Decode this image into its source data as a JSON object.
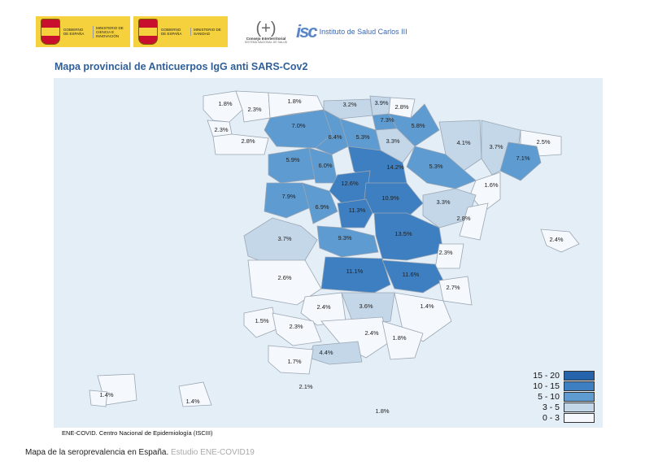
{
  "logos": {
    "gov1": {
      "line1": "GOBIERNO DE ESPAÑA",
      "line2": "MINISTERIO DE CIENCIA E INNOVACIÓN"
    },
    "gov2": {
      "line1": "GOBIERNO DE ESPAÑA",
      "line2": "MINISTERIO DE SANIDAD"
    },
    "consejo": {
      "line1": "Consejo Interterritorial",
      "line2": "SISTEMA NACIONAL DE SALUD"
    },
    "isciii": "Instituto de Salud Carlos III"
  },
  "map_title": "Mapa provincial de Anticuerpos IgG anti SARS-Cov2",
  "source": "ENE-COVID. Centro Nacional de Epidemiología (ISCIII)",
  "caption": {
    "main": "Mapa de la seroprevalencia en España.",
    "sub": "Estudio ENE-COVID19"
  },
  "colors": {
    "c0_3": "#f5f8fc",
    "c3_5": "#c3d7e9",
    "c5_10": "#5e9bd1",
    "c10_15": "#3d7fc1",
    "c15_20": "#2563aa",
    "panel": "#e4eef7",
    "border": "#9aa6b3"
  },
  "legend": [
    {
      "label": "15 - 20",
      "color": "#2563aa"
    },
    {
      "label": "10 - 15",
      "color": "#3d7fc1"
    },
    {
      "label": "5 - 10",
      "color": "#5e9bd1"
    },
    {
      "label": "3 - 5",
      "color": "#c3d7e9"
    },
    {
      "label": "0 - 3",
      "color": "#f5f8fc"
    }
  ],
  "provinces": [
    {
      "value": "1.8%",
      "level": 0
    },
    {
      "value": "2.3%",
      "level": 0
    },
    {
      "value": "1.8%",
      "level": 0
    },
    {
      "value": "3.2%",
      "level": 1
    },
    {
      "value": "3.9%",
      "level": 1
    },
    {
      "value": "2.8%",
      "level": 0
    },
    {
      "value": "7.3%",
      "level": 2
    },
    {
      "value": "2.3%",
      "level": 0
    },
    {
      "value": "7.0%",
      "level": 2
    },
    {
      "value": "6.4%",
      "level": 2
    },
    {
      "value": "5.3%",
      "level": 2
    },
    {
      "value": "5.8%",
      "level": 2
    },
    {
      "value": "2.8%",
      "level": 0
    },
    {
      "value": "3.3%",
      "level": 1
    },
    {
      "value": "4.1%",
      "level": 1
    },
    {
      "value": "3.7%",
      "level": 1
    },
    {
      "value": "2.5%",
      "level": 0
    },
    {
      "value": "5.9%",
      "level": 2
    },
    {
      "value": "6.0%",
      "level": 2
    },
    {
      "value": "14.2%",
      "level": 3
    },
    {
      "value": "5.3%",
      "level": 2
    },
    {
      "value": "7.1%",
      "level": 2
    },
    {
      "value": "12.6%",
      "level": 3
    },
    {
      "value": "10.9%",
      "level": 3
    },
    {
      "value": "1.6%",
      "level": 0
    },
    {
      "value": "7.9%",
      "level": 2
    },
    {
      "value": "6.9%",
      "level": 2
    },
    {
      "value": "11.3%",
      "level": 3
    },
    {
      "value": "3.3%",
      "level": 1
    },
    {
      "value": "2.8%",
      "level": 0
    },
    {
      "value": "13.5%",
      "level": 3
    },
    {
      "value": "2.4%",
      "level": 0
    },
    {
      "value": "3.7%",
      "level": 1
    },
    {
      "value": "9.3%",
      "level": 2
    },
    {
      "value": "2.3%",
      "level": 0
    },
    {
      "value": "11.1%",
      "level": 3
    },
    {
      "value": "11.6%",
      "level": 3
    },
    {
      "value": "2.6%",
      "level": 0
    },
    {
      "value": "2.7%",
      "level": 0
    },
    {
      "value": "2.4%",
      "level": 0
    },
    {
      "value": "3.6%",
      "level": 1
    },
    {
      "value": "1.4%",
      "level": 0
    },
    {
      "value": "1.5%",
      "level": 0
    },
    {
      "value": "2.3%",
      "level": 0
    },
    {
      "value": "2.4%",
      "level": 0
    },
    {
      "value": "1.8%",
      "level": 0
    },
    {
      "value": "4.4%",
      "level": 1
    },
    {
      "value": "1.7%",
      "level": 0
    },
    {
      "value": "1.4%",
      "level": 0
    },
    {
      "value": "2.1%",
      "level": 0
    },
    {
      "value": "1.4%",
      "level": 0
    },
    {
      "value": "1.8%",
      "level": 0
    }
  ]
}
